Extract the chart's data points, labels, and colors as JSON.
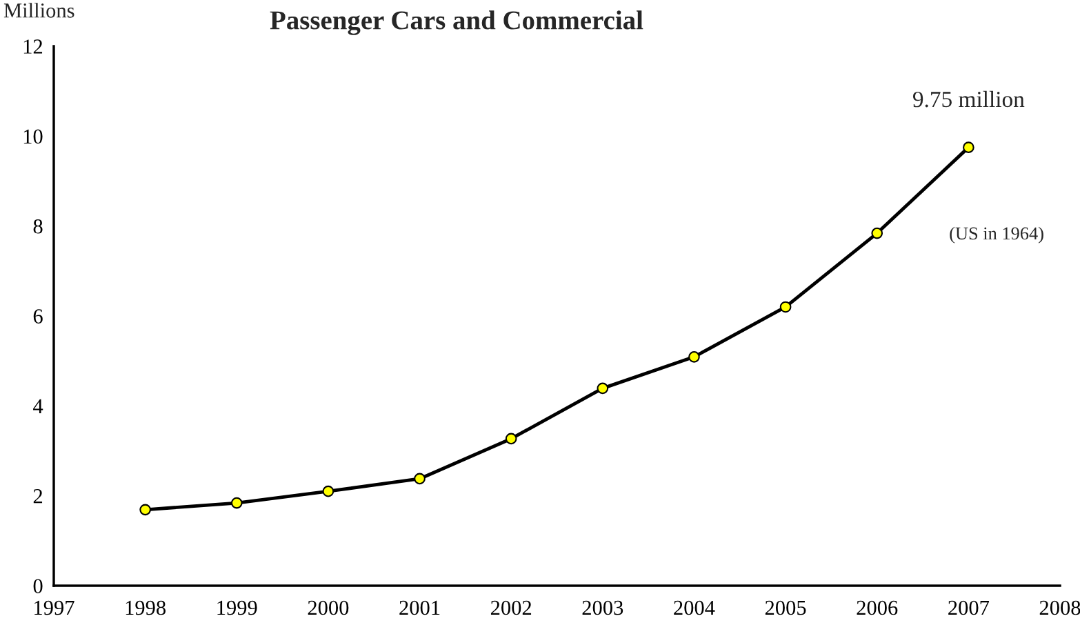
{
  "chart_data": {
    "type": "line",
    "title": "Passenger Cars and Commercial",
    "ylabel": "Millions",
    "x": [
      1998,
      1999,
      2000,
      2001,
      2002,
      2003,
      2004,
      2005,
      2006,
      2007
    ],
    "series": [
      {
        "color": "#000000",
        "colors": [
          "#ffff00",
          "#ffff00",
          "#ffff00",
          "#ffff00",
          "#ffff00",
          "#ffff00",
          "#ffff00",
          "#ffff00",
          "#ffff00",
          "#ffff00"
        ],
        "values": [
          1.69,
          1.84,
          2.1,
          2.38,
          3.27,
          4.39,
          5.09,
          6.2,
          7.84,
          9.75
        ]
      }
    ],
    "xlim": [
      1997,
      2008
    ],
    "xticks": [
      1997,
      1998,
      1999,
      2000,
      2001,
      2002,
      2003,
      2004,
      2005,
      2006,
      2007,
      2008
    ],
    "ylim": [
      0,
      12
    ],
    "yticks": [
      0,
      2,
      4,
      6,
      8,
      10,
      12
    ],
    "marker": "circle",
    "line_style": "solid",
    "grid": false,
    "legend": false,
    "annotations": [
      {
        "text": "9.75 million",
        "x": 2007,
        "y": 9.75
      },
      "(US in 1964)"
    ]
  }
}
